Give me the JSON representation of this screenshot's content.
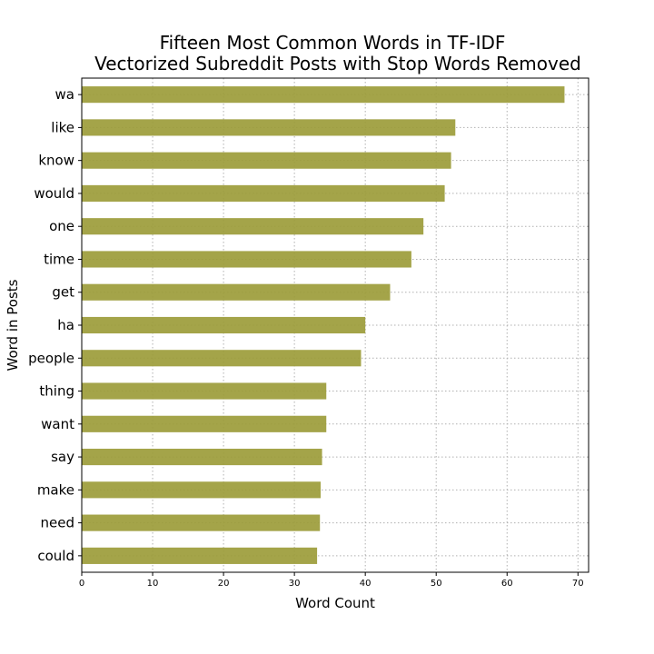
{
  "chart_data": {
    "type": "bar",
    "orientation": "horizontal",
    "title_lines": [
      "Fifteen Most Common Words in TF-IDF",
      "Vectorized Subreddit Posts with Stop Words Removed"
    ],
    "xlabel": "Word Count",
    "ylabel": "Word in Posts",
    "categories": [
      "wa",
      "like",
      "know",
      "would",
      "one",
      "time",
      "get",
      "ha",
      "people",
      "thing",
      "want",
      "say",
      "make",
      "need",
      "could"
    ],
    "values": [
      68.1,
      52.7,
      52.1,
      51.2,
      48.2,
      46.5,
      43.5,
      40.0,
      39.4,
      34.5,
      34.5,
      33.9,
      33.7,
      33.6,
      33.2
    ],
    "xlim": [
      0,
      71.5
    ],
    "xticks": [
      0,
      10,
      20,
      30,
      40,
      50,
      60,
      70
    ],
    "grid": true,
    "bar_color": "#9c9c3a"
  }
}
